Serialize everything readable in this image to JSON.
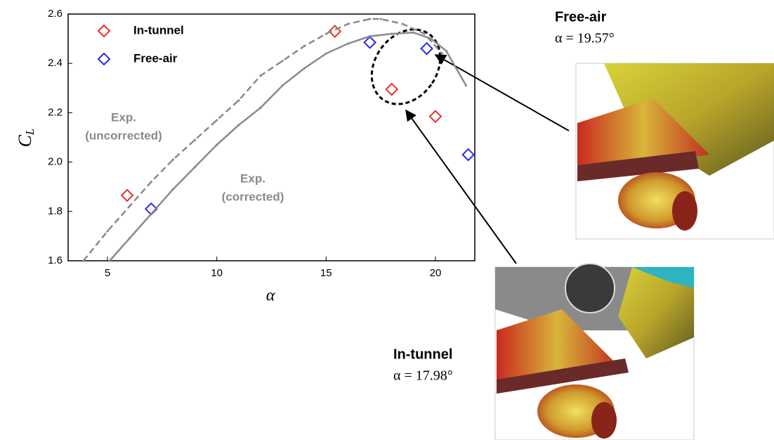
{
  "chart_data": {
    "type": "scatter",
    "xlabel": "α",
    "ylabel": "C",
    "ylabel_sub": "L",
    "xlim": [
      3.2,
      21.8
    ],
    "ylim": [
      1.6,
      2.6
    ],
    "xticks": [
      5,
      10,
      15,
      20
    ],
    "yticks": [
      1.6,
      1.8,
      {
        "value": 2,
        "label": "2.0"
      },
      2.2,
      2.4,
      2.6
    ],
    "legend": "upper left",
    "series": [
      {
        "name": "In-tunnel",
        "style": "markers",
        "color": "#e8322a",
        "x": [
          5.9,
          15.4,
          18.0,
          20.0
        ],
        "y": [
          1.865,
          2.53,
          2.295,
          2.185
        ]
      },
      {
        "name": "Free-air",
        "style": "markers",
        "color": "#2b2be6",
        "x": [
          7.0,
          17.0,
          19.6,
          21.5
        ],
        "y": [
          1.81,
          2.485,
          2.46,
          2.03
        ]
      },
      {
        "label": [
          "Exp.",
          "(uncorrected)"
        ],
        "style": "dashed",
        "color": "#8a8a8a",
        "x": [
          3.9,
          5,
          6,
          7,
          8,
          9,
          10,
          11,
          12,
          13,
          14,
          15,
          16,
          17,
          17.5,
          18.5,
          19.5,
          20.3
        ],
        "y": [
          1.6,
          1.72,
          1.82,
          1.92,
          2.01,
          2.09,
          2.17,
          2.25,
          2.35,
          2.41,
          2.47,
          2.52,
          2.56,
          2.58,
          2.58,
          2.56,
          2.52,
          2.44
        ]
      },
      {
        "label": [
          "Exp.",
          "(corrected)"
        ],
        "style": "solid",
        "color": "#8a8a8a",
        "x": [
          5.1,
          6,
          7,
          8,
          9,
          10,
          11,
          12,
          13,
          14,
          15,
          16,
          17,
          18,
          19,
          19.8,
          20.5,
          21.4
        ],
        "y": [
          1.6,
          1.69,
          1.79,
          1.89,
          1.98,
          2.07,
          2.15,
          2.22,
          2.31,
          2.38,
          2.44,
          2.48,
          2.51,
          2.52,
          2.525,
          2.5,
          2.45,
          2.31
        ]
      }
    ],
    "insets": [
      {
        "title": "Free-air",
        "caption": "α = 19.57°"
      },
      {
        "title": "In-tunnel",
        "caption": "α = 17.98°"
      }
    ]
  }
}
